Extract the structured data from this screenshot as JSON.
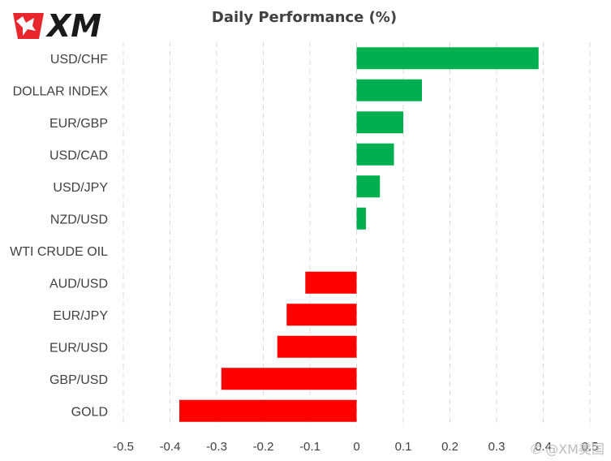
{
  "header": {
    "title": "Daily Performance (%)"
  },
  "watermark": {
    "text": "@XM美国"
  },
  "colors": {
    "positive": "#00b050",
    "negative": "#ff0000",
    "logo_red": "#e8262b",
    "logo_dark": "#1a1a1a"
  },
  "chart_data": {
    "type": "bar",
    "orientation": "horizontal",
    "title": "Daily Performance (%)",
    "xlabel": "",
    "ylabel": "",
    "categories": [
      "USD/CHF",
      "DOLLAR INDEX",
      "EUR/GBP",
      "USD/CAD",
      "USD/JPY",
      "NZD/USD",
      "WTI CRUDE OIL",
      "AUD/USD",
      "EUR/JPY",
      "EUR/USD",
      "GBP/USD",
      "GOLD"
    ],
    "values": [
      0.39,
      0.14,
      0.1,
      0.08,
      0.05,
      0.02,
      0.0,
      -0.11,
      -0.15,
      -0.17,
      -0.29,
      -0.38
    ],
    "xlim": [
      -0.5,
      0.5
    ],
    "ticks": [
      -0.5,
      -0.4,
      -0.3,
      -0.2,
      -0.1,
      0,
      0.1,
      0.2,
      0.3,
      0.4,
      0.5
    ],
    "tick_labels": [
      "-0.5",
      "-0.4",
      "-0.3",
      "-0.2",
      "-0.1",
      "0",
      "0.1",
      "0.2",
      "0.3",
      "0.4",
      "0.5"
    ],
    "grid": "vertical-dashed",
    "legend": "none"
  }
}
